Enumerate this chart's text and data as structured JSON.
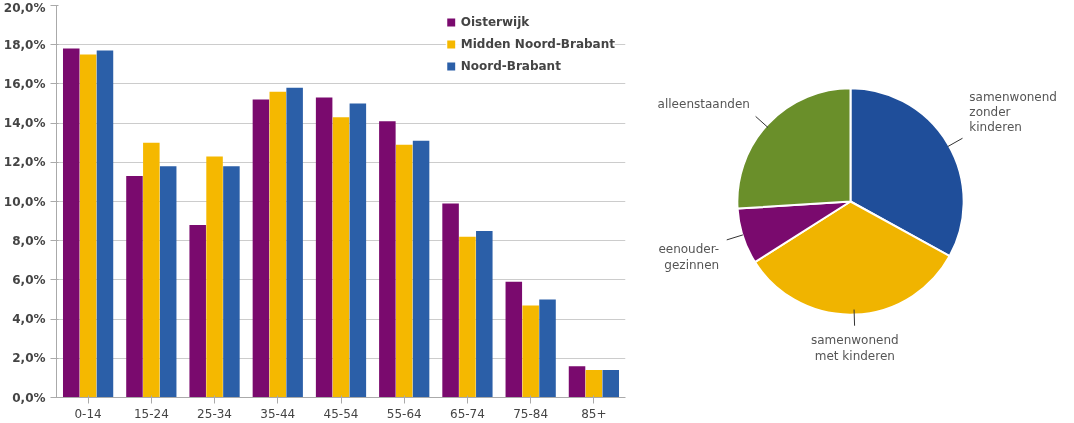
{
  "chart_data": [
    {
      "type": "bar",
      "categories": [
        "0-14",
        "15-24",
        "25-34",
        "35-44",
        "45-54",
        "55-64",
        "65-74",
        "75-84",
        "85+"
      ],
      "series": [
        {
          "name": "Oisterwijk",
          "color": "#7a0a6e",
          "values": [
            17.8,
            11.3,
            8.8,
            15.2,
            15.3,
            14.1,
            9.9,
            5.9,
            1.6
          ]
        },
        {
          "name": "Midden Noord-Brabant",
          "color": "#f5b800",
          "values": [
            17.5,
            13.0,
            12.3,
            15.6,
            14.3,
            12.9,
            8.2,
            4.7,
            1.4
          ]
        },
        {
          "name": "Noord-Brabant",
          "color": "#2b5fa8",
          "values": [
            17.7,
            11.8,
            11.8,
            15.8,
            15.0,
            13.1,
            8.5,
            5.0,
            1.4
          ]
        }
      ],
      "ylim": [
        0,
        20
      ],
      "yticks": [
        {
          "value": 0,
          "label": "0,0%"
        },
        {
          "value": 2,
          "label": "2,0%"
        },
        {
          "value": 4,
          "label": "4,0%"
        },
        {
          "value": 6,
          "label": "6,0%"
        },
        {
          "value": 8,
          "label": "8,0%"
        },
        {
          "value": 10,
          "label": "10,0%"
        },
        {
          "value": 12,
          "label": "12,0%"
        },
        {
          "value": 14,
          "label": "14,0%"
        },
        {
          "value": 16,
          "label": "16,0%"
        },
        {
          "value": 18,
          "label": "18,0%"
        },
        {
          "value": 20,
          "label": "20,0%"
        }
      ],
      "grid": "y",
      "legend": "top right"
    },
    {
      "type": "pie",
      "categories": [
        "samenwonend\nzonder\nkinderen",
        "samenwonend\nmet kinderen",
        "eenouder-\ngezinnen",
        "alleenstaanden"
      ],
      "values": [
        33,
        33,
        8,
        26
      ],
      "colors": [
        "#1f4e9a",
        "#f0b400",
        "#7a0a6e",
        "#6a8f2a"
      ]
    }
  ]
}
